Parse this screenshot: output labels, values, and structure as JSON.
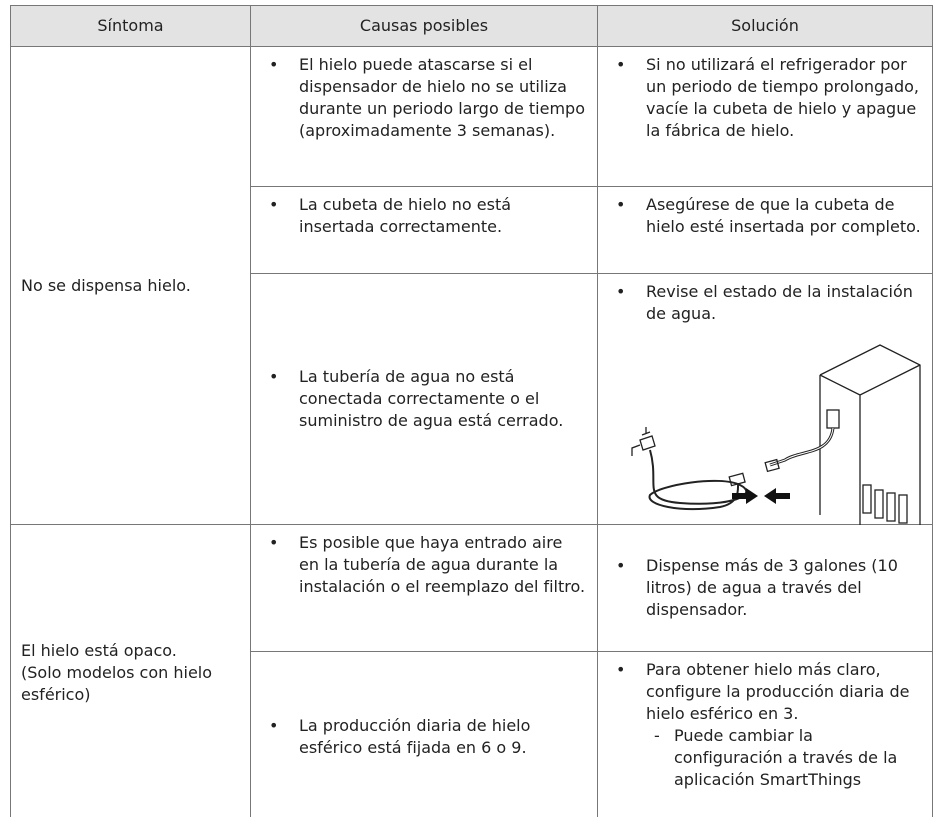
{
  "table": {
    "header": [
      "Síntoma",
      "Causas posibles",
      "Solución"
    ],
    "groups": [
      {
        "symptom": [
          "No se dispensa hielo."
        ],
        "rows": [
          {
            "cause": "El hielo puede atascarse si el dispensador de hielo no se utiliza durante un periodo largo de tiempo (aproximadamente 3 semanas).",
            "solution": "Si no utilizará el refrigerador por un periodo de tiempo prolongado, vacíe la cubeta de hielo y apague la fábrica de hielo."
          },
          {
            "cause": "La cubeta de hielo no está insertada correctamente.",
            "solution": "Asegúrese de que la cubeta de hielo esté insertada por completo."
          },
          {
            "cause": "La tubería de agua no está conectada correctamente o el suministro de agua está cerrado.",
            "solution": "Revise el estado de la instalación de agua."
          }
        ]
      },
      {
        "symptom": [
          "El hielo está opaco.",
          "(Solo modelos con hielo esférico)"
        ],
        "rows": [
          {
            "cause": "Es posible que haya entrado aire en la tubería de agua durante la instalación o el reemplazo del filtro.",
            "solution": "Dispense más de 3 galones (10 litros) de agua a través del dispensador."
          },
          {
            "cause": "La producción diaria de hielo esférico está fijada en 6 o 9.",
            "solution": "Para obtener hielo más claro, configure la producción diaria de hielo esférico en 3.",
            "note": "Puede cambiar la configuración a través de la aplicación SmartThings"
          }
        ]
      }
    ]
  }
}
